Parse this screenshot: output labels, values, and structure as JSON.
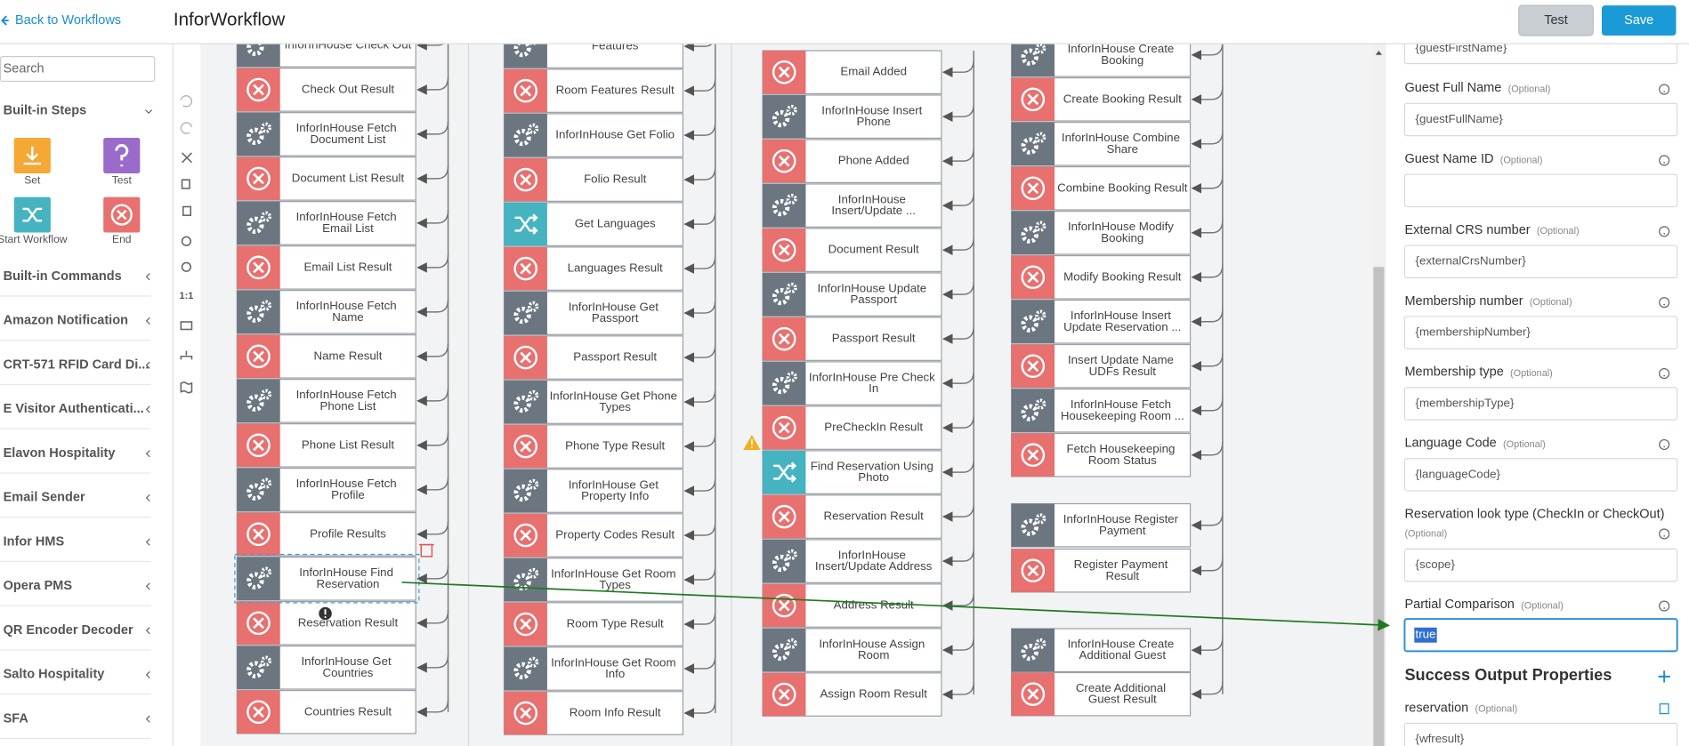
{
  "header": {
    "back_link": "Back to Workflows",
    "title": "InforWorkflow",
    "buttons": [
      "Test",
      "Save"
    ]
  },
  "sidebar": {
    "search_placeholder": "Search",
    "steps_section": "Built-in Steps",
    "steps": [
      "Set",
      "Test",
      "Start Workflow",
      "End"
    ],
    "sections": [
      "Built-in Commands",
      "Amazon Notification",
      "CRT-571 RFID Card Di...",
      "E Visitor Authenticati...",
      "Elavon Hospitality",
      "Email Sender",
      "Infor HMS",
      "Opera PMS",
      "QR Encoder Decoder",
      "Salto Hospitality",
      "SFA"
    ]
  },
  "toolbar": {
    "zoom_reset": "1:1"
  },
  "canvas": {
    "columns": [
      {
        "nodes": [
          {
            "label": "InforInHouse Check Out",
            "kind": "action"
          },
          {
            "label": "Check Out Result",
            "kind": "error"
          },
          {
            "label": "InforInHouse Fetch Document List",
            "kind": "action"
          },
          {
            "label": "Document List Result",
            "kind": "error"
          },
          {
            "label": "InforInHouse Fetch Email List",
            "kind": "action"
          },
          {
            "label": "Email List Result",
            "kind": "error"
          },
          {
            "label": "InforInHouse Fetch Name",
            "kind": "action"
          },
          {
            "label": "Name Result",
            "kind": "error"
          },
          {
            "label": "InforInHouse Fetch Phone List",
            "kind": "action"
          },
          {
            "label": "Phone List Result",
            "kind": "error"
          },
          {
            "label": "InforInHouse Fetch Profile",
            "kind": "action"
          },
          {
            "label": "Profile Results",
            "kind": "error"
          },
          {
            "label": "InforInHouse Find Reservation",
            "kind": "action"
          },
          {
            "label": "Reservation Result",
            "kind": "error"
          },
          {
            "label": "InforInHouse Get Countries",
            "kind": "action"
          },
          {
            "label": "Countries Result",
            "kind": "error"
          }
        ]
      },
      {
        "nodes": [
          {
            "label": "Features",
            "kind": "action"
          },
          {
            "label": "Room Features Result",
            "kind": "error"
          },
          {
            "label": "InforInHouse Get Folio",
            "kind": "action"
          },
          {
            "label": "Folio Result",
            "kind": "error"
          },
          {
            "label": "Get Languages",
            "kind": "branch"
          },
          {
            "label": "Languages Result",
            "kind": "error"
          },
          {
            "label": "InforInHouse Get Passport",
            "kind": "action"
          },
          {
            "label": "Passport Result",
            "kind": "error"
          },
          {
            "label": "InforInHouse Get Phone Types",
            "kind": "action"
          },
          {
            "label": "Phone Type Result",
            "kind": "error"
          },
          {
            "label": "InforInHouse Get Property Info",
            "kind": "action"
          },
          {
            "label": "Property Codes Result",
            "kind": "error"
          },
          {
            "label": "InforInHouse Get Room Types",
            "kind": "action"
          },
          {
            "label": "Room Type Result",
            "kind": "error"
          },
          {
            "label": "InforInHouse Get Room Info",
            "kind": "action"
          },
          {
            "label": "Room Info Result",
            "kind": "error"
          }
        ]
      },
      {
        "nodes": [
          {
            "label": "Email Added",
            "kind": "error"
          },
          {
            "label": "InforInHouse Insert Phone",
            "kind": "action"
          },
          {
            "label": "Phone Added",
            "kind": "error"
          },
          {
            "label": "InforInHouse Insert/Update ...",
            "kind": "action"
          },
          {
            "label": "Document Result",
            "kind": "error"
          },
          {
            "label": "InforInHouse Update Passport",
            "kind": "action"
          },
          {
            "label": "Passport Result",
            "kind": "error"
          },
          {
            "label": "InforInHouse Pre Check In",
            "kind": "action"
          },
          {
            "label": "PreCheckIn Result",
            "kind": "error"
          },
          {
            "label": "Find Reservation Using Photo",
            "kind": "branch"
          },
          {
            "label": "Reservation Result",
            "kind": "error"
          },
          {
            "label": "InforInHouse Insert/Update Address",
            "kind": "action"
          },
          {
            "label": "Address Result",
            "kind": "error"
          },
          {
            "label": "InforInHouse Assign Room",
            "kind": "action"
          },
          {
            "label": "Assign Room Result",
            "kind": "error"
          }
        ]
      },
      {
        "nodes": [
          {
            "label": "InforInHouse Create Booking",
            "kind": "action"
          },
          {
            "label": "Create Booking Result",
            "kind": "error"
          },
          {
            "label": "InforInHouse Combine Share",
            "kind": "action"
          },
          {
            "label": "Combine Booking Result",
            "kind": "error"
          },
          {
            "label": "InforInHouse Modify Booking",
            "kind": "action"
          },
          {
            "label": "Modify Booking Result",
            "kind": "error"
          },
          {
            "label": "InforInHouse Insert Update Reservation ...",
            "kind": "action"
          },
          {
            "label": "Insert Update Name UDFs Result",
            "kind": "error"
          },
          {
            "label": "InforInHouse Fetch Housekeeping Room ...",
            "kind": "action"
          },
          {
            "label": "Fetch Housekeeping Room Status",
            "kind": "error"
          },
          {
            "label": "InforInHouse Register Payment",
            "kind": "action"
          },
          {
            "label": "Register Payment Result",
            "kind": "error"
          },
          {
            "label": "InforInHouse Create Additional Guest",
            "kind": "action"
          },
          {
            "label": "Create Additional Guest Result",
            "kind": "error"
          }
        ]
      }
    ]
  },
  "properties": {
    "top_value": "{guestFirstName}",
    "fields": [
      {
        "label": "Guest Full Name",
        "optional": "(Optional)",
        "value": "{guestFullName}"
      },
      {
        "label": "Guest Name ID",
        "optional": "(Optional)"
      },
      {
        "label": "External CRS number",
        "optional": "(Optional)",
        "value": "{externalCrsNumber}"
      },
      {
        "label": "Membership number",
        "optional": "(Optional)",
        "value": "{membershipNumber}"
      },
      {
        "label": "Membership type",
        "optional": "(Optional)",
        "value": "{membershipType}"
      },
      {
        "label": "Language Code",
        "optional": "(Optional)",
        "value": "{languageCode}"
      },
      {
        "label": "Reservation look type (CheckIn or CheckOut)",
        "optional": "(Optional)",
        "value": "{scope}"
      },
      {
        "label": "Partial Comparison",
        "optional": "(Optional)",
        "value": "true"
      }
    ],
    "output_section": "Success Output Properties",
    "outputs": [
      {
        "label": "reservation",
        "optional": "(Optional)",
        "value": "{wfresult}"
      }
    ]
  }
}
